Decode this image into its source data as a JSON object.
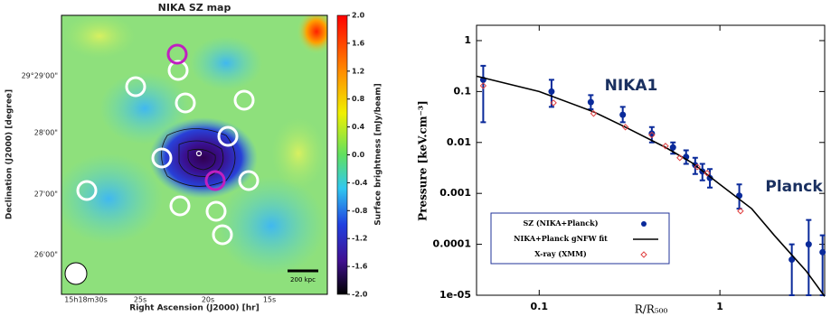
{
  "chart_data": [
    {
      "type": "heatmap",
      "title": "NIKA SZ map",
      "x_label": "Right Ascension (J2000) [hr]",
      "y_label": "Declination (J2000) [degree]",
      "x_tick_labels": [
        "15h18m30s",
        "25s",
        "20s",
        "15s"
      ],
      "y_tick_labels": [
        "29°29'00\"",
        "28'00\"",
        "27'00\"",
        "26'00\""
      ],
      "colorbar_label": "Surface brightness [mJy/beam]",
      "clim": [
        -2,
        2
      ],
      "colorbar_ticks": [
        {
          "value": 2,
          "label": "2.0"
        },
        1.6,
        1.2,
        0.8,
        0.4,
        {
          "value": 0,
          "label": "0.0"
        },
        -0.4,
        -0.8,
        -1.2,
        -1.6,
        {
          "value": -2,
          "label": "-2.0"
        }
      ],
      "scale_bar": "200 kpc"
    },
    {
      "type": "scatter",
      "x_label": "R/R₅₀₀",
      "y_label": "Pressure [keV.cm⁻³]",
      "log_x": true,
      "log_y": true,
      "xlim": [
        0.045,
        3.8
      ],
      "ylim": [
        1e-05,
        2
      ],
      "xticks": [
        0.1,
        1
      ],
      "yticks": [
        1,
        0.1,
        0.01,
        0.001,
        0.0001,
        {
          "value": 1e-05,
          "label": "1e-05"
        }
      ],
      "annotations": [
        "NIKA1",
        "Planck"
      ],
      "legend": "lower left",
      "series": [
        {
          "name": "SZ (NIKA+Planck)",
          "color": "#0a2a9a",
          "marker": "circle",
          "x": [
            0.049,
            0.117,
            0.193,
            0.29,
            0.42,
            0.55,
            0.65,
            0.73,
            0.8,
            0.88,
            1.28,
            2.5,
            3.1,
            3.7
          ],
          "values": [
            0.17,
            0.1,
            0.062,
            0.035,
            0.015,
            0.008,
            0.0052,
            0.0036,
            0.0027,
            0.002,
            0.0009,
            5e-05,
            0.0001,
            7e-05
          ],
          "lower": [
            0.025,
            0.05,
            0.045,
            0.025,
            0.01,
            0.006,
            0.0038,
            0.0024,
            0.0018,
            0.0013,
            0.0005,
            1e-05,
            1e-05,
            1e-05
          ],
          "upper": [
            0.32,
            0.17,
            0.085,
            0.05,
            0.02,
            0.01,
            0.007,
            0.005,
            0.0038,
            0.003,
            0.0015,
            0.0001,
            0.0003,
            0.00015
          ]
        },
        {
          "name": "NIKA+Planck gNFW fit",
          "color": "#000000",
          "marker": "line",
          "x": [
            0.045,
            0.1,
            0.2,
            0.3,
            0.5,
            0.7,
            1,
            1.5,
            2,
            3,
            3.8
          ],
          "values": [
            0.2,
            0.1,
            0.04,
            0.02,
            0.008,
            0.004,
            0.0015,
            0.0005,
            0.00015,
            3e-05,
            9.5e-06
          ]
        },
        {
          "name": "X-ray (XMM)",
          "color": "#e04040",
          "marker": "diamond",
          "x": [
            0.049,
            0.12,
            0.2,
            0.3,
            0.42,
            0.5,
            0.6,
            0.75,
            0.85,
            1.3
          ],
          "values": [
            0.13,
            0.06,
            0.037,
            0.02,
            0.014,
            0.0085,
            0.005,
            0.0033,
            0.0025,
            0.00045
          ]
        }
      ]
    }
  ]
}
